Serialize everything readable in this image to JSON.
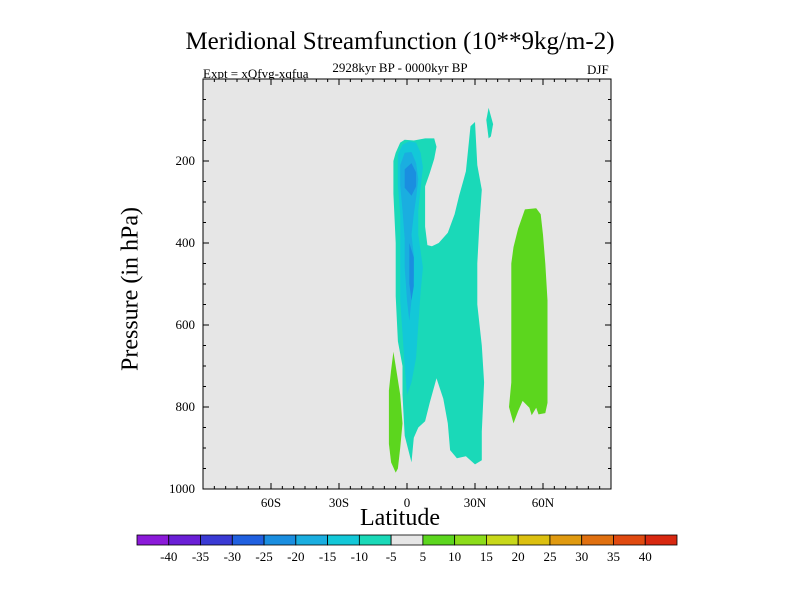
{
  "chart_data": {
    "type": "contour",
    "title": "Meridional Streamfunction (10**9kg/m-2)",
    "subtitle_left": "Expt = xQfvg-xqfua",
    "subtitle_center": "2928kyr BP - 0000kyr BP",
    "subtitle_right": "DJF",
    "xlabel": "Latitude",
    "ylabel": "Pressure (in hPa)",
    "xlim": [
      -90,
      90
    ],
    "ylim": [
      1000,
      0
    ],
    "x_ticks": [
      {
        "value": -60,
        "label": "60S"
      },
      {
        "value": -30,
        "label": "30S"
      },
      {
        "value": 0,
        "label": "0"
      },
      {
        "value": 30,
        "label": "30N"
      },
      {
        "value": 60,
        "label": "60N"
      }
    ],
    "y_ticks": [
      {
        "value": 200,
        "label": "200"
      },
      {
        "value": 400,
        "label": "400"
      },
      {
        "value": 600,
        "label": "600"
      },
      {
        "value": 800,
        "label": "800"
      },
      {
        "value": 1000,
        "label": "1000"
      }
    ],
    "background_color": "#e6e6e6",
    "colorbar": {
      "levels": [
        "-40",
        "-35",
        "-30",
        "-25",
        "-20",
        "-15",
        "-10",
        "-5",
        "5",
        "10",
        "15",
        "20",
        "25",
        "30",
        "35",
        "40"
      ],
      "colors": [
        "#8b1ad9",
        "#6a1fd6",
        "#3a3ad4",
        "#2060e0",
        "#1a8ee0",
        "#1aaee0",
        "#13c8d8",
        "#1ad9b8",
        "#e6e6e6",
        "#5cd61e",
        "#8cdc1a",
        "#c8d81a",
        "#dcc010",
        "#e09a10",
        "#e07010",
        "#e04a10",
        "#d82810"
      ]
    },
    "regions": [
      {
        "name": "main-negative-column",
        "level": "-10 to -5",
        "color": "#1ad9b8",
        "points": [
          [
            -5,
            180
          ],
          [
            -3,
            155
          ],
          [
            -1,
            148
          ],
          [
            3,
            150
          ],
          [
            8,
            145
          ],
          [
            12,
            145
          ],
          [
            13,
            165
          ],
          [
            12,
            195
          ],
          [
            10,
            230
          ],
          [
            8,
            262
          ],
          [
            8,
            310
          ],
          [
            8,
            360
          ],
          [
            9,
            405
          ],
          [
            11,
            408
          ],
          [
            14,
            400
          ],
          [
            18,
            375
          ],
          [
            21,
            330
          ],
          [
            23,
            285
          ],
          [
            25,
            245
          ],
          [
            26,
            225
          ],
          [
            27,
            170
          ],
          [
            28,
            115
          ],
          [
            30,
            105
          ],
          [
            31,
            210
          ],
          [
            33,
            270
          ],
          [
            32,
            350
          ],
          [
            31,
            450
          ],
          [
            31,
            550
          ],
          [
            33,
            650
          ],
          [
            34,
            740
          ],
          [
            33,
            860
          ],
          [
            33,
            930
          ],
          [
            30,
            940
          ],
          [
            26,
            920
          ],
          [
            22,
            925
          ],
          [
            19,
            905
          ],
          [
            18,
            840
          ],
          [
            16,
            780
          ],
          [
            13,
            730
          ],
          [
            10,
            790
          ],
          [
            8,
            835
          ],
          [
            5,
            850
          ],
          [
            3,
            875
          ],
          [
            2,
            935
          ],
          [
            -1,
            870
          ],
          [
            -2,
            770
          ],
          [
            -2,
            700
          ],
          [
            -4,
            640
          ],
          [
            -5,
            530
          ],
          [
            -5,
            400
          ],
          [
            -6,
            280
          ],
          [
            -6,
            200
          ]
        ]
      },
      {
        "name": "small-negative-patch",
        "level": "-10 to -5",
        "color": "#1ad9b8",
        "points": [
          [
            36,
            70
          ],
          [
            38,
            110
          ],
          [
            37,
            140
          ],
          [
            36,
            145
          ],
          [
            35,
            100
          ]
        ]
      },
      {
        "name": "inner-column-a",
        "level": "-15 to -10",
        "color": "#13c8d8",
        "points": [
          [
            -4,
            185
          ],
          [
            -2,
            160
          ],
          [
            1,
            152
          ],
          [
            4,
            155
          ],
          [
            6,
            180
          ],
          [
            7,
            215
          ],
          [
            6,
            265
          ],
          [
            5,
            320
          ],
          [
            5,
            380
          ],
          [
            7,
            460
          ],
          [
            6,
            520
          ],
          [
            5,
            600
          ],
          [
            4,
            680
          ],
          [
            2,
            740
          ],
          [
            0,
            770
          ],
          [
            -1,
            700
          ],
          [
            -2,
            620
          ],
          [
            -3,
            540
          ],
          [
            -3,
            440
          ],
          [
            -3,
            330
          ],
          [
            -4,
            260
          ]
        ]
      },
      {
        "name": "inner-column-b",
        "level": "-20 to -15",
        "color": "#1aaee0",
        "points": [
          [
            -3,
            210
          ],
          [
            -1,
            180
          ],
          [
            2,
            178
          ],
          [
            4,
            205
          ],
          [
            5,
            245
          ],
          [
            4,
            290
          ],
          [
            3,
            330
          ],
          [
            2,
            380
          ],
          [
            3,
            430
          ],
          [
            3,
            480
          ],
          [
            2,
            540
          ],
          [
            1,
            590
          ],
          [
            0,
            540
          ],
          [
            -1,
            460
          ],
          [
            -1,
            390
          ],
          [
            -2,
            320
          ],
          [
            -3,
            260
          ]
        ]
      },
      {
        "name": "core-a",
        "level": "-25 to -20",
        "color": "#1a8ee0",
        "points": [
          [
            -1,
            220
          ],
          [
            2,
            205
          ],
          [
            4,
            228
          ],
          [
            4,
            262
          ],
          [
            2,
            285
          ],
          [
            -1,
            265
          ]
        ]
      },
      {
        "name": "core-b",
        "level": "-25 to -20",
        "color": "#1a8ee0",
        "points": [
          [
            1,
            400
          ],
          [
            3,
            435
          ],
          [
            3,
            505
          ],
          [
            2,
            540
          ],
          [
            1,
            500
          ]
        ]
      },
      {
        "name": "positive-right",
        "level": "5 to 10",
        "color": "#5cd61e",
        "points": [
          [
            52,
            318
          ],
          [
            57,
            315
          ],
          [
            59,
            330
          ],
          [
            60,
            380
          ],
          [
            61,
            450
          ],
          [
            62,
            540
          ],
          [
            62,
            650
          ],
          [
            62,
            710
          ],
          [
            62,
            790
          ],
          [
            61,
            815
          ],
          [
            58,
            818
          ],
          [
            57,
            802
          ],
          [
            55,
            820
          ],
          [
            54,
            802
          ],
          [
            51,
            785
          ],
          [
            49,
            810
          ],
          [
            47,
            840
          ],
          [
            45,
            800
          ],
          [
            46,
            740
          ],
          [
            46,
            700
          ],
          [
            46,
            600
          ],
          [
            46,
            500
          ],
          [
            46,
            450
          ],
          [
            47,
            410
          ],
          [
            49,
            365
          ]
        ]
      },
      {
        "name": "positive-left",
        "level": "5 to 10",
        "color": "#5cd61e",
        "points": [
          [
            -6,
            665
          ],
          [
            -5,
            700
          ],
          [
            -3,
            770
          ],
          [
            -2,
            840
          ],
          [
            -3,
            900
          ],
          [
            -4,
            950
          ],
          [
            -5,
            960
          ],
          [
            -7,
            935
          ],
          [
            -8,
            890
          ],
          [
            -8,
            830
          ],
          [
            -8,
            760
          ],
          [
            -7,
            710
          ]
        ]
      }
    ]
  }
}
